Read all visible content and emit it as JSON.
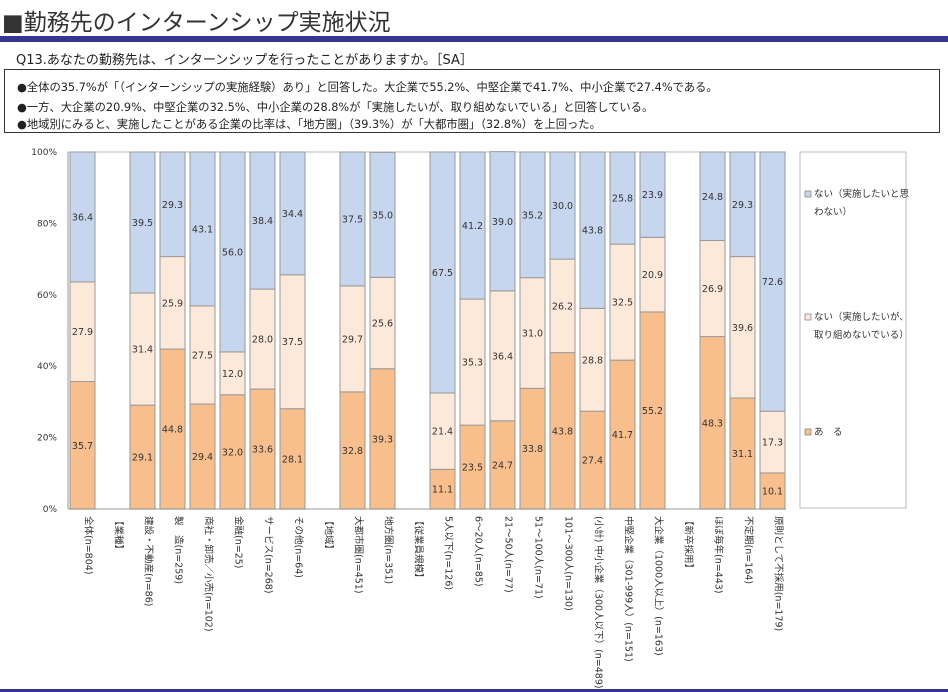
{
  "header": {
    "title": "■勤務先のインターンシップ実施状況",
    "question": "Q13.あなたの勤務先は、インターンシップを行ったことがありますか。［SA］"
  },
  "summary": {
    "lines": [
      "●全体の35.7%が「（インターンシップの実施経験）あり」と回答した。大企業で55.2%、中堅企業で41.7%、中小企業で27.4%である。",
      "●一方、大企業の20.9%、中堅企業の32.5%、中小企業の28.8%が「実施したいが、取り組めないでいる」と回答している。",
      "●地域別にみると、実施したことがある企業の比率は、「地方圏」（39.3%）が「大都市圏」（32.8%）を上回った。"
    ]
  },
  "colors": {
    "aru": "#F8BF8C",
    "nai_torikumenai": "#FDE9DA",
    "nai_omowanai": "#C6D6EE",
    "bar_border": "#999999",
    "axis": "#BBBBBB"
  },
  "chart_data": {
    "type": "bar",
    "stacked": true,
    "orientation": "vertical",
    "percent_stacked": true,
    "ylim": [
      0,
      100
    ],
    "yticks": [
      "0%",
      "20%",
      "40%",
      "60%",
      "80%",
      "100%"
    ],
    "ytick_values": [
      0,
      20,
      40,
      60,
      80,
      100
    ],
    "legend_position": "right",
    "grid": false,
    "categories": [
      "全体(n=804)",
      "【業種】",
      "建設・不動産(n=86)",
      "製　造(n=259)",
      "商社・卸売／小売(n=102)",
      "金融(n=25)",
      "サービス(n=268)",
      "その他(n=64)",
      "【地域】",
      "大都市圏(n=451)",
      "地方圏(n=351)",
      "【従業員規模】",
      "5人以下(n=126)",
      "6～20人(n=85)",
      "21～50人(n=77)",
      "51～100人(n=71)",
      "101～300人(n=130)",
      "(小計) 中小企業（300人以下）(n=489)",
      "中堅企業（301-999人）(n=151)",
      "大企業（1000人以上）(n=163)",
      "【新卒採用】",
      "ほぼ毎年(n=443)",
      "不定期(n=164)",
      "原則として不採用(n=179)"
    ],
    "series": [
      {
        "name": "あ　る",
        "key": "aru",
        "values": [
          35.7,
          null,
          29.1,
          44.8,
          29.4,
          32.0,
          33.6,
          28.1,
          null,
          32.8,
          39.3,
          null,
          11.1,
          23.5,
          24.7,
          33.8,
          43.8,
          27.4,
          41.7,
          55.2,
          null,
          48.3,
          31.1,
          10.1
        ]
      },
      {
        "name": "ない（実施したいが、取り組めないでいる）",
        "key": "nai_torikumenai",
        "values": [
          27.9,
          null,
          31.4,
          25.9,
          27.5,
          12.0,
          28.0,
          37.5,
          null,
          29.7,
          25.6,
          null,
          21.4,
          35.3,
          36.4,
          31.0,
          26.2,
          28.8,
          32.5,
          20.9,
          null,
          26.9,
          39.6,
          17.3
        ]
      },
      {
        "name": "ない（実施したいと思わない）",
        "key": "nai_omowanai",
        "values": [
          36.4,
          null,
          39.5,
          29.3,
          43.1,
          56.0,
          38.4,
          34.4,
          null,
          37.5,
          35.0,
          null,
          67.5,
          41.2,
          39.0,
          35.2,
          30.0,
          43.8,
          25.8,
          23.9,
          null,
          24.8,
          29.3,
          72.6
        ]
      }
    ],
    "legend": [
      {
        "key": "nai_omowanai",
        "lines": [
          "ない（実施したいと思",
          "わない）"
        ]
      },
      {
        "key": "nai_torikumenai",
        "lines": [
          "ない（実施したいが、",
          "取り組めないでいる）"
        ]
      },
      {
        "key": "aru",
        "lines": [
          "あ　る"
        ]
      }
    ]
  }
}
